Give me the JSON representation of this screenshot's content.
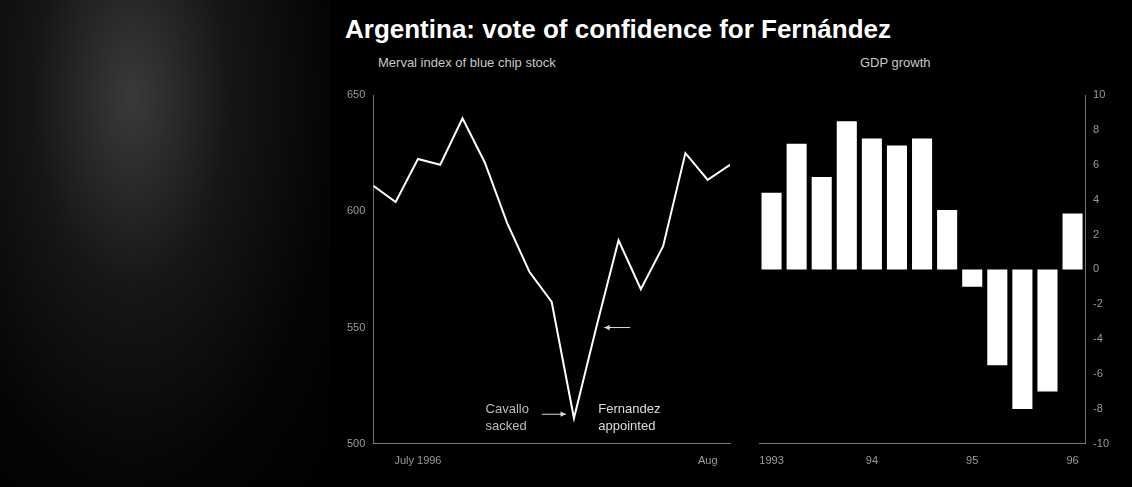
{
  "title": "Argentina: vote of confidence for Fernández",
  "chart_data": [
    {
      "type": "line",
      "title": "Merval index of blue chip stock",
      "categories": [
        null,
        null,
        "July 1996",
        null,
        null,
        null,
        null,
        null,
        null,
        null,
        null,
        null,
        null,
        null,
        null,
        "Aug",
        null
      ],
      "values": [
        611,
        604,
        622.5,
        620,
        640,
        621,
        595,
        574,
        561,
        511,
        550,
        587.5,
        566.5,
        585,
        625,
        613.5,
        620
      ],
      "color": "#ffffff",
      "ylim": [
        500,
        650
      ],
      "yticks": [
        500,
        550,
        600,
        650
      ],
      "grid": false,
      "annotations": [
        {
          "text": "Cavallo sacked",
          "index": 9
        },
        {
          "text": "Fernandez appointed",
          "index": 10
        }
      ]
    },
    {
      "type": "bar",
      "title": "GDP growth",
      "categories": [
        "1993",
        null,
        null,
        null,
        "94",
        null,
        null,
        null,
        "95",
        null,
        null,
        null,
        "96"
      ],
      "values": [
        4.4,
        7.2,
        5.3,
        8.5,
        7.5,
        7.1,
        7.5,
        3.4,
        -1,
        -5.5,
        -8,
        -7,
        3.2
      ],
      "color": "#ffffff",
      "ylim": [
        -10,
        10
      ],
      "yticks": [
        -10,
        -8,
        -6,
        -4,
        -2,
        0,
        2,
        4,
        6,
        8,
        10
      ],
      "grid": false
    }
  ]
}
